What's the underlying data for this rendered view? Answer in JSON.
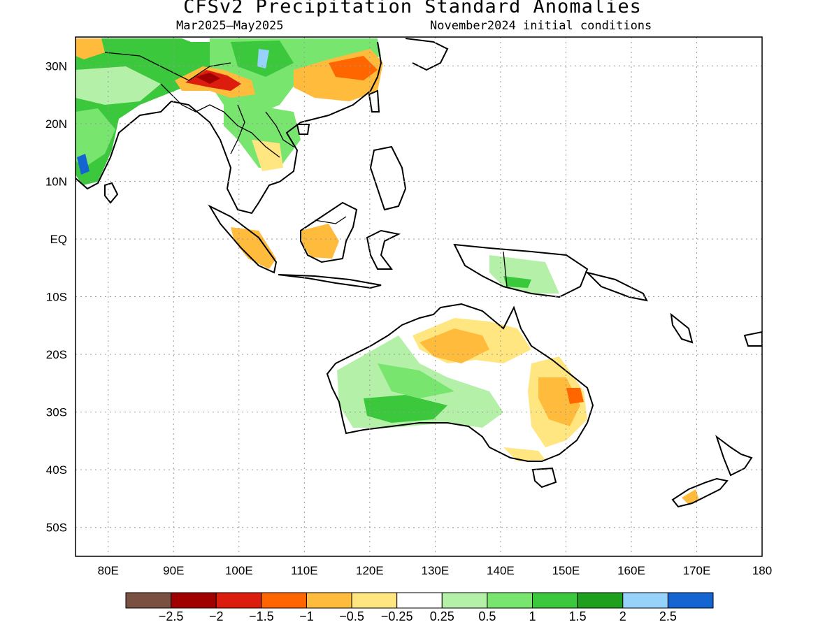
{
  "title": "CFSv2 Precipitation Standard Anomalies",
  "subtitle_left": "Mar2025—May2025",
  "subtitle_right": "November2024 initial conditions",
  "map": {
    "lon_range": [
      75,
      180
    ],
    "lat_range": [
      -55,
      35
    ],
    "lat_ticks": [
      "30N",
      "20N",
      "10N",
      "EQ",
      "10S",
      "20S",
      "30S",
      "40S",
      "50S"
    ],
    "lon_ticks": [
      "80E",
      "90E",
      "100E",
      "110E",
      "120E",
      "130E",
      "140E",
      "150E",
      "160E",
      "170E",
      "180"
    ],
    "grid": "dotted"
  },
  "colorbar": {
    "labels": [
      "-2.5",
      "-2",
      "-1.5",
      "-1",
      "-0.5",
      "-0.25",
      "0.25",
      "0.5",
      "1",
      "1.5",
      "2",
      "2.5"
    ],
    "colors": [
      "#7a5042",
      "#a00000",
      "#dc1c0c",
      "#ff6600",
      "#ffbb3c",
      "#ffe680",
      "#ffffff",
      "#b4f0a8",
      "#78e66e",
      "#3cc83c",
      "#1ea01e",
      "#96d2fa",
      "#1464d2"
    ]
  }
}
